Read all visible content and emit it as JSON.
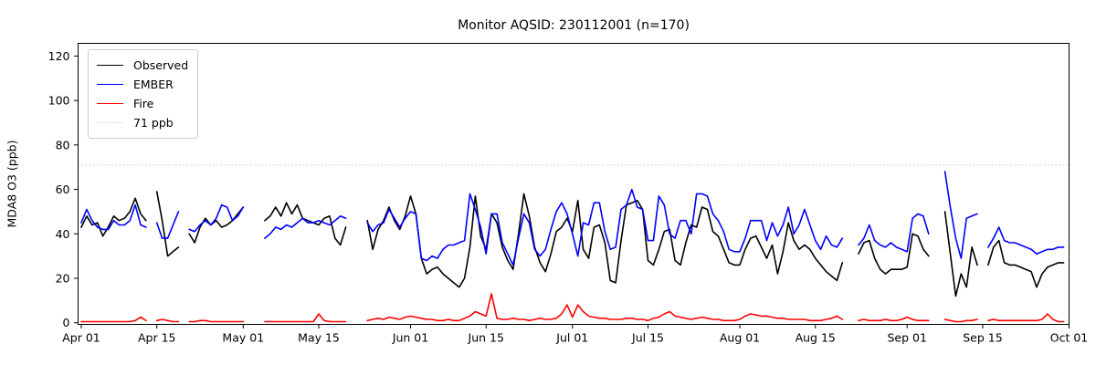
{
  "figure": {
    "title": "Monitor AQSID: 230112001 (n=170)",
    "ylabel": "MDA8 O3 (ppb)"
  },
  "legend": {
    "items": [
      {
        "label": "Observed",
        "color": "#000000",
        "style": "solid"
      },
      {
        "label": "EMBER",
        "color": "#0000ff",
        "style": "solid"
      },
      {
        "label": "Fire",
        "color": "#ff0000",
        "style": "solid"
      },
      {
        "label": "71 ppb",
        "color": "#d3d3d3",
        "style": "dotted"
      }
    ]
  },
  "chart_data": {
    "type": "line",
    "title": "Monitor AQSID: 230112001 (n=170)",
    "xlabel": "",
    "ylabel": "MDA8 O3 (ppb)",
    "grid": false,
    "legend_position": "upper left",
    "ylim": [
      -1,
      126
    ],
    "y_ticks": [
      0,
      20,
      40,
      60,
      80,
      100,
      120
    ],
    "x_start_date": "Apr 01",
    "x_end_date": "Oct 01",
    "x_unit": "days since Apr 01",
    "x_ticks": [
      {
        "label": "Apr 01",
        "day": 0
      },
      {
        "label": "Apr 15",
        "day": 14
      },
      {
        "label": "May 01",
        "day": 30
      },
      {
        "label": "May 15",
        "day": 44
      },
      {
        "label": "Jun 01",
        "day": 61
      },
      {
        "label": "Jun 15",
        "day": 75
      },
      {
        "label": "Jul 01",
        "day": 91
      },
      {
        "label": "Jul 15",
        "day": 105
      },
      {
        "label": "Aug 01",
        "day": 122
      },
      {
        "label": "Aug 15",
        "day": 136
      },
      {
        "label": "Sep 01",
        "day": 153
      },
      {
        "label": "Sep 15",
        "day": 167
      },
      {
        "label": "Oct 01",
        "day": 183
      }
    ],
    "threshold": {
      "value": 71,
      "label": "71 ppb",
      "color": "#d3d3d3",
      "style": "dotted"
    },
    "n_observations": 170,
    "series": [
      {
        "name": "Observed",
        "color": "#000000",
        "values": [
          43,
          48,
          44,
          45,
          39,
          43,
          48,
          46,
          47,
          50,
          56,
          49,
          46,
          null,
          59,
          46,
          30,
          32,
          34,
          null,
          40,
          36,
          43,
          47,
          44,
          46,
          43,
          44,
          46,
          49,
          52,
          null,
          null,
          null,
          46,
          48,
          52,
          48,
          54,
          49,
          53,
          47,
          46,
          45,
          44,
          47,
          48,
          38,
          35,
          43,
          null,
          null,
          null,
          46,
          33,
          42,
          46,
          52,
          46,
          42,
          48,
          57,
          49,
          29,
          22,
          24,
          25,
          22,
          20,
          18,
          16,
          20,
          34,
          57,
          39,
          33,
          49,
          45,
          34,
          28,
          24,
          40,
          58,
          48,
          34,
          27,
          23,
          31,
          41,
          43,
          47,
          41,
          55,
          33,
          29,
          43,
          44,
          36,
          19,
          18,
          37,
          53,
          54,
          55,
          51,
          28,
          26,
          33,
          41,
          42,
          28,
          26,
          36,
          44,
          43,
          52,
          51,
          41,
          39,
          33,
          27,
          26,
          26,
          33,
          38,
          39,
          34,
          29,
          35,
          22,
          32,
          45,
          37,
          33,
          35,
          33,
          29,
          26,
          23,
          21,
          19,
          27,
          null,
          null,
          31,
          36,
          37,
          29,
          24,
          22,
          24,
          24,
          24,
          25,
          40,
          39,
          33,
          30,
          null,
          null,
          50,
          31,
          12,
          22,
          16,
          34,
          26,
          null,
          26,
          34,
          37,
          27,
          26,
          26,
          25,
          24,
          23,
          16,
          22,
          25,
          26,
          27,
          27
        ]
      },
      {
        "name": "EMBER",
        "color": "#0000ff",
        "values": [
          45,
          51,
          46,
          43,
          42,
          42,
          46,
          44,
          44,
          46,
          53,
          44,
          43,
          null,
          45,
          38,
          38,
          44,
          50,
          null,
          42,
          41,
          44,
          46,
          44,
          47,
          53,
          52,
          46,
          48,
          52,
          null,
          null,
          null,
          38,
          40,
          43,
          42,
          44,
          43,
          45,
          47,
          45,
          45,
          46,
          45,
          44,
          46,
          48,
          47,
          null,
          null,
          null,
          45,
          41,
          44,
          45,
          51,
          47,
          43,
          47,
          50,
          49,
          29,
          28,
          30,
          29,
          33,
          35,
          35,
          36,
          37,
          58,
          51,
          43,
          31,
          49,
          49,
          36,
          31,
          26,
          38,
          49,
          45,
          33,
          30,
          33,
          42,
          50,
          54,
          49,
          40,
          30,
          45,
          44,
          54,
          54,
          41,
          33,
          34,
          51,
          53,
          60,
          52,
          51,
          37,
          37,
          57,
          53,
          40,
          38,
          46,
          46,
          40,
          58,
          58,
          57,
          49,
          46,
          41,
          33,
          32,
          32,
          38,
          46,
          46,
          46,
          37,
          45,
          39,
          44,
          52,
          40,
          44,
          51,
          44,
          37,
          33,
          39,
          35,
          34,
          38,
          null,
          null,
          35,
          38,
          44,
          37,
          35,
          34,
          36,
          34,
          33,
          32,
          47,
          49,
          48,
          40,
          null,
          null,
          68,
          52,
          38,
          29,
          47,
          48,
          49,
          null,
          34,
          38,
          43,
          37,
          36,
          36,
          35,
          34,
          33,
          31,
          32,
          33,
          33,
          34,
          34
        ]
      },
      {
        "name": "Fire",
        "color": "#ff0000",
        "values": [
          0.5,
          0.5,
          0.5,
          0.5,
          0.5,
          0.5,
          0.5,
          0.5,
          0.5,
          0.5,
          1,
          2.5,
          1,
          null,
          1,
          1.5,
          1,
          0.5,
          0.5,
          null,
          0.5,
          0.5,
          1,
          1,
          0.5,
          0.5,
          0.5,
          0.5,
          0.5,
          0.5,
          0.5,
          null,
          null,
          null,
          0.5,
          0.5,
          0.5,
          0.5,
          0.5,
          0.5,
          0.5,
          0.5,
          0.5,
          0.5,
          4,
          1,
          0.5,
          0.5,
          0.5,
          0.5,
          null,
          null,
          null,
          1,
          1.5,
          2,
          1.5,
          2.5,
          2,
          1.5,
          2.5,
          3,
          2.5,
          2,
          1.5,
          1.5,
          1,
          1,
          1.5,
          1,
          1,
          2,
          3,
          5,
          4,
          3,
          13,
          2,
          1.5,
          1.5,
          2,
          1.5,
          1.5,
          1,
          1.5,
          2,
          1.5,
          1.5,
          2,
          4,
          8,
          2.5,
          8,
          5,
          3,
          2.5,
          2,
          2,
          1.5,
          1.5,
          1.5,
          2,
          2,
          1.5,
          1.5,
          1,
          2,
          2.5,
          4,
          5,
          3,
          2.5,
          2,
          1.5,
          2,
          2.5,
          2,
          1.5,
          1.5,
          1,
          1,
          1,
          1.5,
          3,
          4,
          3.5,
          3,
          3,
          2.5,
          2,
          2,
          1.5,
          1.5,
          1.5,
          1.5,
          1,
          1,
          1,
          1.5,
          2,
          3,
          1.5,
          null,
          null,
          1,
          1.5,
          1,
          1,
          1,
          1.5,
          1,
          1,
          1.5,
          2.5,
          1.5,
          1,
          1,
          1,
          null,
          null,
          1.5,
          1,
          0.5,
          0.5,
          1,
          1,
          1.5,
          null,
          1,
          1.5,
          1,
          1,
          1,
          1,
          1,
          1,
          1,
          1,
          1.5,
          4,
          1.5,
          0.5,
          0.5
        ]
      }
    ]
  }
}
